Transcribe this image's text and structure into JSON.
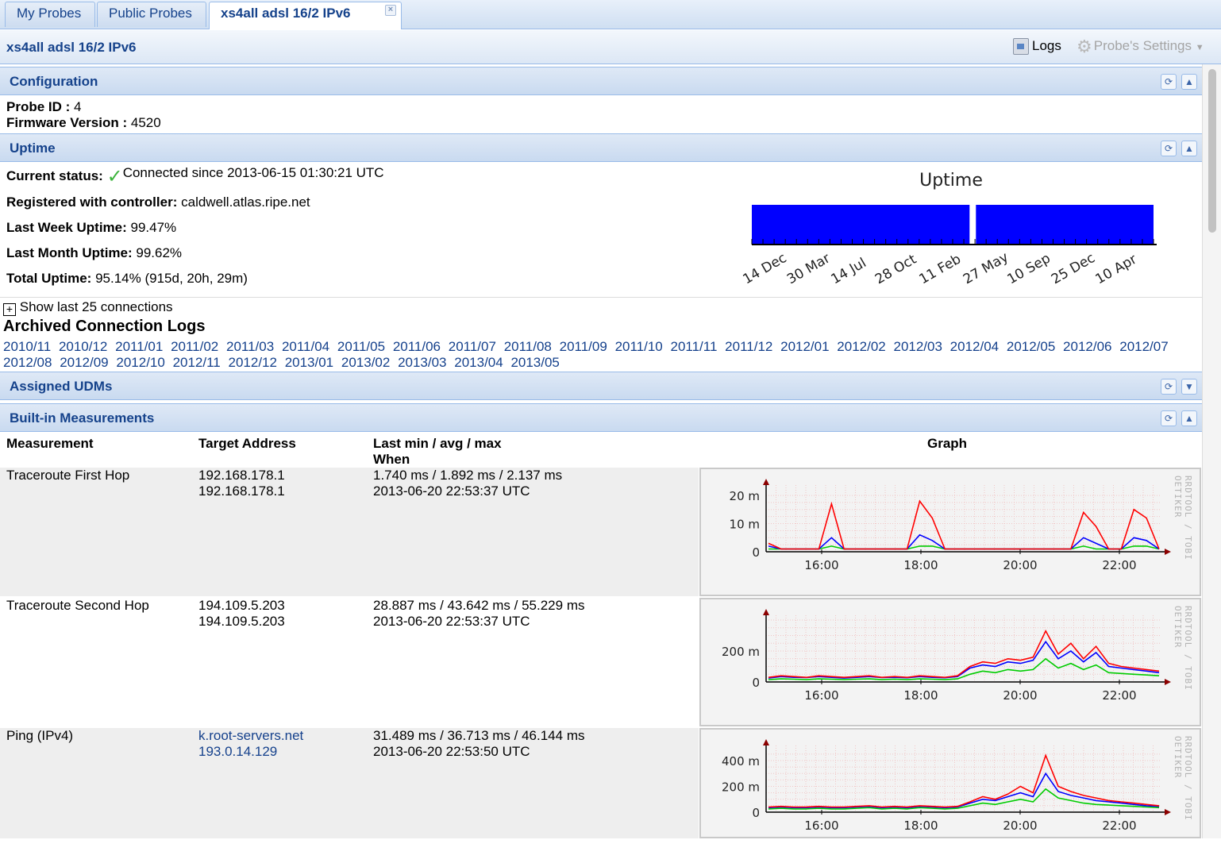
{
  "tabs": [
    "My Probes",
    "Public Probes",
    "xs4all adsl 16/2 IPv6"
  ],
  "probe": {
    "title": "xs4all adsl 16/2 IPv6",
    "logs_label": "Logs",
    "settings_label": "Probe's Settings"
  },
  "sections": {
    "configuration": "Configuration",
    "uptime": "Uptime",
    "assigned_udms": "Assigned UDMs",
    "builtin": "Built-in Measurements"
  },
  "config": {
    "probe_id_label": "Probe ID :",
    "probe_id": "4",
    "firmware_label": "Firmware Version :",
    "firmware": "4520"
  },
  "uptime": {
    "status_label": "Current status:",
    "status": "Connected since 2013-06-15 01:30:21 UTC",
    "controller_label": "Registered with controller:",
    "controller": "caldwell.atlas.ripe.net",
    "week_label": "Last Week Uptime:",
    "week": "99.47%",
    "month_label": "Last Month Uptime:",
    "month": "99.62%",
    "total_label": "Total Uptime:",
    "total": "95.14% (915d, 20h, 29m)",
    "show_connections": "Show last 25 connections"
  },
  "uptime_chart": {
    "title": "Uptime",
    "ticks": [
      "14 Dec",
      "30 Mar",
      "14 Jul",
      "28 Oct",
      "11 Feb",
      "27 May",
      "10 Sep",
      "25 Dec",
      "10 Apr"
    ],
    "bar_color": "#0000ff",
    "gap_at_fraction": 0.55
  },
  "archive": {
    "title": "Archived Connection Logs",
    "months": [
      "2010/11",
      "2010/12",
      "2011/01",
      "2011/02",
      "2011/03",
      "2011/04",
      "2011/05",
      "2011/06",
      "2011/07",
      "2011/08",
      "2011/09",
      "2011/10",
      "2011/11",
      "2011/12",
      "2012/01",
      "2012/02",
      "2012/03",
      "2012/04",
      "2012/05",
      "2012/06",
      "2012/07",
      "2012/08",
      "2012/09",
      "2012/10",
      "2012/11",
      "2012/12",
      "2013/01",
      "2013/02",
      "2013/03",
      "2013/04",
      "2013/05"
    ]
  },
  "measurements": {
    "headers": {
      "measurement": "Measurement",
      "target": "Target Address",
      "stats": "Last min / avg / max",
      "when": "When",
      "graph": "Graph"
    },
    "rows": [
      {
        "name": "Traceroute First Hop",
        "target1": "192.168.178.1",
        "target2": "192.168.178.1",
        "stats": "1.740 ms / 1.892 ms / 2.137 ms",
        "when": "2013-06-20 22:53:37 UTC"
      },
      {
        "name": "Traceroute Second Hop",
        "target1": "194.109.5.203",
        "target2": "194.109.5.203",
        "stats": "28.887 ms / 43.642 ms / 55.229 ms",
        "when": "2013-06-20 22:53:37 UTC"
      },
      {
        "name": "Ping (IPv4)",
        "target1": "k.root-servers.net",
        "target2": "193.0.14.129",
        "stats": "31.489 ms / 36.713 ms / 46.144 ms",
        "when": "2013-06-20 22:53:50 UTC"
      }
    ]
  },
  "chart_data": [
    {
      "type": "line",
      "x": [
        "15:00",
        "15:15",
        "15:30",
        "15:45",
        "16:00",
        "16:15",
        "16:30",
        "16:45",
        "17:00",
        "17:15",
        "17:30",
        "17:45",
        "18:00",
        "18:15",
        "18:30",
        "18:45",
        "19:00",
        "19:15",
        "19:30",
        "19:45",
        "20:00",
        "20:15",
        "20:30",
        "20:45",
        "21:00",
        "21:15",
        "21:30",
        "21:45",
        "22:00",
        "22:15",
        "22:30",
        "22:45"
      ],
      "series": [
        {
          "color": "#ff0000",
          "values": [
            3,
            1,
            1,
            1,
            1,
            17,
            1,
            1,
            1,
            1,
            1,
            1,
            18,
            12,
            1,
            1,
            1,
            1,
            1,
            1,
            1,
            1,
            1,
            1,
            1,
            14,
            9,
            1,
            1,
            15,
            12,
            1
          ]
        },
        {
          "color": "#0000ff",
          "values": [
            2,
            1,
            1,
            1,
            1,
            5,
            1,
            1,
            1,
            1,
            1,
            1,
            6,
            4,
            1,
            1,
            1,
            1,
            1,
            1,
            1,
            1,
            1,
            1,
            1,
            5,
            3,
            1,
            1,
            5,
            4,
            1
          ]
        },
        {
          "color": "#00cc00",
          "values": [
            1,
            1,
            1,
            1,
            1,
            2,
            1,
            1,
            1,
            1,
            1,
            1,
            2,
            2,
            1,
            1,
            1,
            1,
            1,
            1,
            1,
            1,
            1,
            1,
            1,
            2,
            1,
            1,
            1,
            2,
            2,
            1
          ]
        }
      ],
      "yticks": [
        "0",
        "10 m",
        "20 m"
      ],
      "xticks": [
        "16:00",
        "18:00",
        "20:00",
        "22:00"
      ],
      "ylim": [
        0,
        0.022
      ],
      "watermark": "RRDTOOL / TOBI OETIKER"
    },
    {
      "type": "line",
      "x": [
        "15:00",
        "15:15",
        "15:30",
        "15:45",
        "16:00",
        "16:15",
        "16:30",
        "16:45",
        "17:00",
        "17:15",
        "17:30",
        "17:45",
        "18:00",
        "18:15",
        "18:30",
        "18:45",
        "19:00",
        "19:15",
        "19:30",
        "19:45",
        "20:00",
        "20:15",
        "20:30",
        "20:45",
        "21:00",
        "21:15",
        "21:30",
        "21:45",
        "22:00",
        "22:15",
        "22:30",
        "22:45"
      ],
      "series": [
        {
          "color": "#ff0000",
          "values": [
            30,
            40,
            35,
            30,
            40,
            35,
            30,
            35,
            40,
            30,
            35,
            30,
            40,
            35,
            30,
            40,
            100,
            130,
            120,
            150,
            140,
            160,
            330,
            180,
            250,
            150,
            230,
            120,
            100,
            90,
            80,
            70
          ]
        },
        {
          "color": "#0000ff",
          "values": [
            25,
            35,
            30,
            28,
            35,
            30,
            25,
            30,
            35,
            28,
            30,
            27,
            35,
            30,
            27,
            35,
            90,
            110,
            100,
            130,
            120,
            140,
            260,
            150,
            200,
            130,
            190,
            100,
            90,
            80,
            70,
            60
          ]
        },
        {
          "color": "#00cc00",
          "values": [
            15,
            20,
            18,
            15,
            20,
            18,
            15,
            18,
            20,
            15,
            18,
            15,
            20,
            18,
            15,
            20,
            50,
            70,
            60,
            80,
            70,
            80,
            150,
            90,
            120,
            80,
            110,
            60,
            55,
            50,
            45,
            40
          ]
        }
      ],
      "yticks": [
        "0",
        "200 m"
      ],
      "xticks": [
        "16:00",
        "18:00",
        "20:00",
        "22:00"
      ],
      "ylim": [
        0,
        0.4
      ],
      "watermark": "RRDTOOL / TOBI OETIKER"
    },
    {
      "type": "line",
      "x": [
        "15:00",
        "15:15",
        "15:30",
        "15:45",
        "16:00",
        "16:15",
        "16:30",
        "16:45",
        "17:00",
        "17:15",
        "17:30",
        "17:45",
        "18:00",
        "18:15",
        "18:30",
        "18:45",
        "19:00",
        "19:15",
        "19:30",
        "19:45",
        "20:00",
        "20:15",
        "20:30",
        "20:45",
        "21:00",
        "21:15",
        "21:30",
        "21:45",
        "22:00",
        "22:15",
        "22:30",
        "22:45"
      ],
      "series": [
        {
          "color": "#ff0000",
          "values": [
            40,
            45,
            40,
            40,
            45,
            40,
            40,
            45,
            50,
            40,
            45,
            40,
            50,
            45,
            40,
            45,
            80,
            120,
            100,
            140,
            200,
            150,
            440,
            200,
            160,
            130,
            110,
            90,
            80,
            70,
            60,
            50
          ]
        },
        {
          "color": "#0000ff",
          "values": [
            35,
            40,
            35,
            35,
            40,
            35,
            35,
            40,
            45,
            35,
            40,
            35,
            45,
            40,
            35,
            40,
            70,
            100,
            90,
            120,
            150,
            120,
            300,
            160,
            130,
            110,
            90,
            80,
            70,
            60,
            50,
            45
          ]
        },
        {
          "color": "#00cc00",
          "values": [
            25,
            30,
            25,
            25,
            30,
            25,
            25,
            30,
            35,
            25,
            30,
            25,
            35,
            30,
            25,
            30,
            50,
            70,
            60,
            80,
            100,
            80,
            180,
            110,
            90,
            70,
            60,
            55,
            50,
            45,
            40,
            35
          ]
        }
      ],
      "yticks": [
        "0",
        "200 m",
        "400 m"
      ],
      "xticks": [
        "16:00",
        "18:00",
        "20:00",
        "22:00"
      ],
      "ylim": [
        0,
        0.48
      ],
      "watermark": "RRDTOOL / TOBI OETIKER"
    }
  ]
}
